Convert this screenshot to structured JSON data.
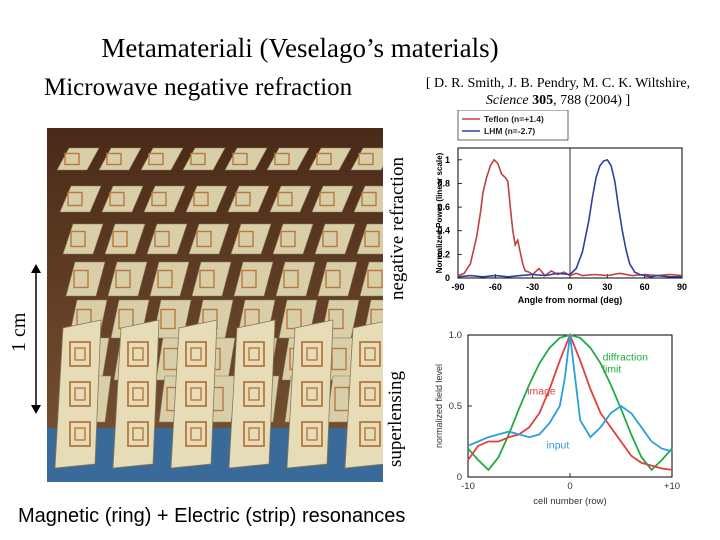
{
  "slide": {
    "title": "Metamateriali (Veselago’s materials)",
    "subtitle": "Microwave negative refraction",
    "citation": {
      "prefix": "[ D. R. Smith, J. B. Pendry, M. C. K. Wiltshire, ",
      "journal": "Science",
      "volume": "305",
      "suffix": ", 788 (2004) ]"
    },
    "vertical_label_top": "negative refraction",
    "vertical_label_bottom": "superlensing",
    "scale_label": "1 cm",
    "bottom_caption": "Magnetic (ring) + Electric (strip) resonances"
  },
  "colors": {
    "teflon": "#c04040",
    "lhm": "#3040a0",
    "image": "#e04040",
    "input": "#2aa0d8",
    "diffraction": "#22aa44",
    "photo_dark": "#5a3a25",
    "photo_board": "#d8cfa8",
    "photo_copper": "#b87840",
    "photo_base": "#3a6a9a"
  },
  "chart_data": [
    {
      "type": "line",
      "title": "",
      "xlabel": "Angle from normal (deg)",
      "ylabel": "Normalized Power (linear scale)",
      "xlim": [
        -90,
        90
      ],
      "ylim": [
        0,
        1.1
      ],
      "xticks": [
        "-90",
        "-60",
        "-30",
        "0",
        "30",
        "60",
        "90"
      ],
      "xtick_values": [
        -90,
        -60,
        -30,
        0,
        30,
        60,
        90
      ],
      "yticks": [
        "0",
        "0.2",
        "0.4",
        "0.6",
        "0.8",
        "1"
      ],
      "ytick_values": [
        0,
        0.2,
        0.4,
        0.6,
        0.8,
        1
      ],
      "legend": [
        "Teflon (n=+1.4)",
        "LHM (n=-2.7)"
      ],
      "legend_position": "top-left",
      "series": [
        {
          "name": "Teflon (n=+1.4)",
          "x": [
            -90,
            -85,
            -80,
            -75,
            -72,
            -70,
            -67,
            -64,
            -61,
            -58,
            -55,
            -52,
            -50,
            -48,
            -46,
            -44,
            -42,
            -40,
            -38,
            -36,
            -33,
            -30,
            -25,
            -20,
            -15,
            -10,
            -5,
            0,
            5,
            10,
            20,
            30,
            40,
            50,
            60,
            70,
            80,
            90
          ],
          "y": [
            0.02,
            0.04,
            0.12,
            0.35,
            0.55,
            0.72,
            0.85,
            0.95,
            1.0,
            0.97,
            0.88,
            0.85,
            0.82,
            0.6,
            0.4,
            0.28,
            0.32,
            0.22,
            0.12,
            0.06,
            0.05,
            0.03,
            0.08,
            0.02,
            0.06,
            0.03,
            0.05,
            0.02,
            0.04,
            0.02,
            0.03,
            0.02,
            0.04,
            0.02,
            0.03,
            0.02,
            0.03,
            0.02
          ]
        },
        {
          "name": "LHM (n=-2.7)",
          "x": [
            -90,
            -80,
            -70,
            -60,
            -50,
            -40,
            -30,
            -20,
            -10,
            0,
            5,
            10,
            15,
            18,
            21,
            24,
            27,
            30,
            33,
            36,
            39,
            42,
            45,
            48,
            52,
            56,
            60,
            65,
            70,
            80,
            90
          ],
          "y": [
            0.01,
            0.02,
            0.01,
            0.02,
            0.01,
            0.02,
            0.03,
            0.02,
            0.04,
            0.03,
            0.08,
            0.22,
            0.48,
            0.68,
            0.85,
            0.95,
            0.99,
            1.0,
            0.95,
            0.82,
            0.6,
            0.4,
            0.24,
            0.12,
            0.05,
            0.03,
            0.02,
            0.01,
            0.02,
            0.01,
            0.01
          ]
        }
      ]
    },
    {
      "type": "line",
      "title": "",
      "xlabel": "cell number (row)",
      "ylabel": "normalized field level",
      "xlim": [
        -10,
        10
      ],
      "ylim": [
        0,
        1.0
      ],
      "xticks": [
        "-10",
        "0",
        "+10"
      ],
      "xtick_values": [
        -10,
        0,
        10
      ],
      "yticks": [
        "0",
        "0.5",
        "1.0"
      ],
      "ytick_values": [
        0,
        0.5,
        1.0
      ],
      "annotations": [
        "diffraction limit",
        "image",
        "input"
      ],
      "series": [
        {
          "name": "diffraction limit",
          "x": [
            -10,
            -9,
            -8,
            -7,
            -6,
            -5,
            -4,
            -3,
            -2,
            -1,
            0,
            1,
            2,
            3,
            4,
            5,
            6,
            7,
            8,
            9,
            10
          ],
          "y": [
            0.2,
            0.12,
            0.05,
            0.14,
            0.3,
            0.48,
            0.65,
            0.8,
            0.91,
            0.98,
            1.0,
            0.98,
            0.91,
            0.8,
            0.65,
            0.48,
            0.3,
            0.14,
            0.05,
            0.12,
            0.2
          ]
        },
        {
          "name": "image",
          "x": [
            -10,
            -9,
            -8,
            -7,
            -6,
            -5,
            -4,
            -3,
            -2,
            -1,
            0,
            1,
            2,
            3,
            4,
            5,
            6,
            7,
            8,
            9,
            10
          ],
          "y": [
            0.12,
            0.22,
            0.25,
            0.25,
            0.28,
            0.3,
            0.35,
            0.45,
            0.62,
            0.82,
            1.0,
            0.82,
            0.62,
            0.45,
            0.35,
            0.25,
            0.15,
            0.1,
            0.08,
            0.06,
            0.05
          ]
        },
        {
          "name": "input",
          "x": [
            -10,
            -9,
            -8,
            -7,
            -6,
            -5,
            -4,
            -3,
            -2,
            -1,
            -0.5,
            0,
            0.5,
            1,
            2,
            3,
            4,
            5,
            6,
            7,
            8,
            9,
            10
          ],
          "y": [
            0.22,
            0.25,
            0.28,
            0.3,
            0.32,
            0.3,
            0.28,
            0.3,
            0.38,
            0.5,
            0.7,
            1.0,
            0.7,
            0.4,
            0.28,
            0.35,
            0.45,
            0.5,
            0.45,
            0.35,
            0.25,
            0.2,
            0.18
          ]
        }
      ]
    }
  ]
}
